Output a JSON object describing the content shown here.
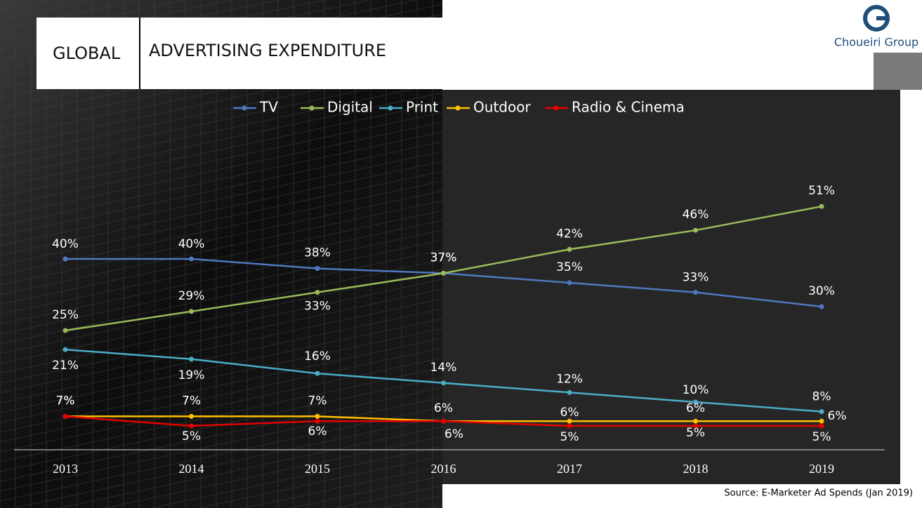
{
  "header": {
    "left": "GLOBAL",
    "title": "ADVERTISING EXPENDITURE"
  },
  "logo": {
    "text": "Choueiri Group"
  },
  "source": "Source:  E-Marketer Ad Spends (Jan 2019)",
  "chart_data": {
    "type": "line",
    "categories": [
      "2013",
      "2014",
      "2015",
      "2016",
      "2017",
      "2018",
      "2019"
    ],
    "ylim": [
      0,
      60
    ],
    "series": [
      {
        "name": "TV",
        "color": "#4f78c0",
        "values": [
          40,
          40,
          38,
          37,
          35,
          33,
          30
        ],
        "value_labels": [
          "40%",
          "40%",
          "38%",
          "37%",
          "35%",
          "33%",
          "30%"
        ]
      },
      {
        "name": "Digital",
        "color": "#9bbb59",
        "values": [
          25,
          29,
          33,
          37,
          42,
          46,
          51
        ],
        "value_labels": [
          "25%",
          "29%",
          "33%",
          "37%",
          "42%",
          "46%",
          "51%"
        ]
      },
      {
        "name": "Print",
        "color": "#4bacc6",
        "values": [
          21,
          19,
          16,
          14,
          12,
          10,
          8
        ],
        "value_labels": [
          "21%",
          "19%",
          "16%",
          "14%",
          "12%",
          "10%",
          "8%"
        ]
      },
      {
        "name": "Outdoor",
        "color": "#ffc000",
        "values": [
          7,
          7,
          7,
          6,
          6,
          6,
          6
        ],
        "value_labels": [
          "7%",
          "7%",
          "7%",
          "6%",
          "6%",
          "6%",
          "6%"
        ]
      },
      {
        "name": "Radio & Cinema",
        "color": "#e60000",
        "values": [
          7,
          5,
          6,
          6,
          5,
          5,
          5
        ],
        "value_labels": [
          "7%",
          "5%",
          "6%",
          "6%",
          "5%",
          "5%",
          "5%"
        ]
      }
    ]
  }
}
